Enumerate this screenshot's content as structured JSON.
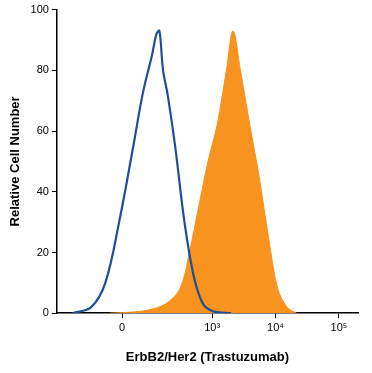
{
  "chart_data": {
    "type": "line",
    "x_label": "ErbB2/Her2 (Trastuzumab)",
    "y_label": "Relative Cell Number",
    "xlim": [
      -400,
      200000
    ],
    "xticks": [
      0,
      {
        "value": 1000,
        "label": "10³"
      },
      {
        "value": 10000,
        "label": "10⁴"
      },
      {
        "value": 100000,
        "label": "10⁵"
      }
    ],
    "ylim": [
      0,
      100
    ],
    "yticks": [
      0,
      20,
      40,
      60,
      80,
      100
    ],
    "grid": false,
    "series": [
      {
        "type": "line",
        "color": "#1f4e99",
        "x": [
          -222,
          -104,
          -49,
          -8,
          32,
          62,
          100,
          122,
          138,
          160,
          192,
          256,
          363,
          514,
          722,
          1080,
          1990
        ],
        "values": [
          0,
          2,
          10,
          30,
          55,
          72,
          85,
          92,
          93,
          80,
          72,
          55,
          30,
          12,
          3,
          0.5,
          0
        ]
      },
      {
        "type": "area",
        "color": "#f7931e",
        "x": [
          -35,
          18,
          80,
          175,
          305,
          435,
          612,
          860,
          1200,
          1680,
          2140,
          2800,
          3940,
          5520,
          7760,
          10870,
          15200,
          21400
        ],
        "values": [
          0,
          0.3,
          1,
          3,
          8,
          20,
          35,
          50,
          62,
          80,
          93,
          80,
          62,
          45,
          25,
          8,
          2,
          0
        ]
      }
    ]
  }
}
